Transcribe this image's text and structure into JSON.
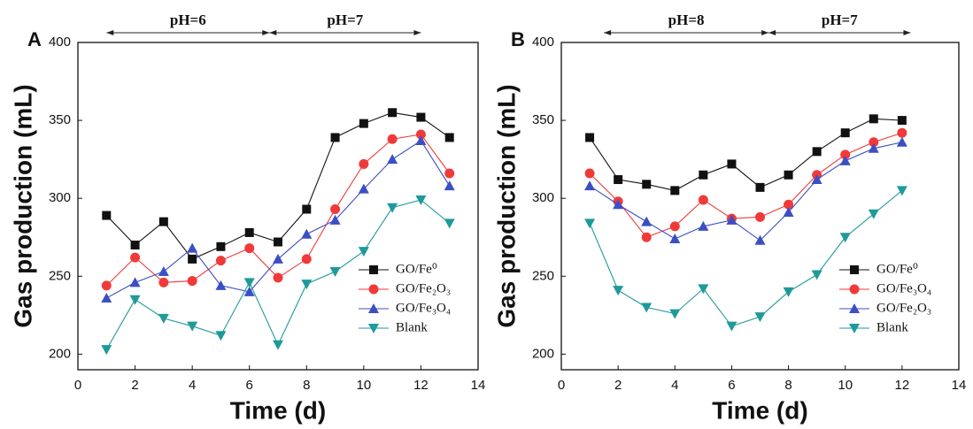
{
  "chart_data": [
    {
      "type": "line",
      "panel_label": "A",
      "xlabel": "Time (d)",
      "ylabel": "Gas production (mL)",
      "x": [
        1,
        2,
        3,
        4,
        5,
        6,
        7,
        8,
        9,
        10,
        11,
        12,
        13
      ],
      "xlim": [
        0,
        14
      ],
      "xticks": [
        0,
        2,
        4,
        6,
        8,
        10,
        12,
        14
      ],
      "ylim": [
        190,
        400
      ],
      "yticks": [
        200,
        250,
        300,
        350,
        400
      ],
      "legend": "lower right",
      "phases": [
        {
          "label": "pH=6",
          "start": 1,
          "end": 6.7
        },
        {
          "label": "pH=7",
          "start": 6.7,
          "end": 12
        }
      ],
      "series": [
        {
          "name": "GO/Fe⁰",
          "color": "#111111",
          "marker": "square",
          "values": [
            289,
            270,
            285,
            261,
            269,
            278,
            272,
            293,
            339,
            348,
            355,
            352,
            339
          ]
        },
        {
          "name": "GO/Fe₂O₃",
          "color": "#f03a3a",
          "marker": "circle",
          "values": [
            244,
            262,
            246,
            247,
            260,
            268,
            249,
            261,
            293,
            322,
            338,
            341,
            316
          ]
        },
        {
          "name": "GO/Fe₃O₄",
          "color": "#3b4fc4",
          "marker": "triangle-up",
          "values": [
            236,
            246,
            253,
            268,
            244,
            240,
            261,
            277,
            286,
            306,
            325,
            337,
            308
          ]
        },
        {
          "name": "Blank",
          "color": "#1f9a9a",
          "marker": "triangle-down",
          "values": [
            203,
            235,
            223,
            218,
            212,
            246,
            206,
            245,
            253,
            266,
            294,
            299,
            284
          ]
        }
      ]
    },
    {
      "type": "line",
      "panel_label": "B",
      "xlabel": "Time (d)",
      "ylabel": "Gas production (mL)",
      "x": [
        1,
        2,
        3,
        4,
        5,
        6,
        7,
        8,
        9,
        10,
        11,
        12
      ],
      "xlim": [
        0,
        14
      ],
      "xticks": [
        0,
        2,
        4,
        6,
        8,
        10,
        12,
        14
      ],
      "ylim": [
        190,
        400
      ],
      "yticks": [
        200,
        250,
        300,
        350,
        400
      ],
      "legend": "lower right",
      "phases": [
        {
          "label": "pH=8",
          "start": 1.5,
          "end": 7.3
        },
        {
          "label": "pH=7",
          "start": 7.3,
          "end": 12.3
        }
      ],
      "series": [
        {
          "name": "GO/Fe⁰",
          "color": "#111111",
          "marker": "square",
          "values": [
            339,
            312,
            309,
            305,
            315,
            322,
            307,
            315,
            330,
            342,
            351,
            350
          ]
        },
        {
          "name": "GO/Fe₃O₄",
          "color": "#f03a3a",
          "marker": "circle",
          "values": [
            316,
            298,
            275,
            282,
            299,
            287,
            288,
            296,
            315,
            328,
            336,
            342
          ]
        },
        {
          "name": "GO/Fe₂O₃",
          "color": "#3b4fc4",
          "marker": "triangle-up",
          "values": [
            308,
            296,
            285,
            274,
            282,
            286,
            273,
            291,
            312,
            324,
            332,
            336
          ]
        },
        {
          "name": "Blank",
          "color": "#1f9a9a",
          "marker": "triangle-down",
          "values": [
            284,
            241,
            230,
            226,
            242,
            218,
            224,
            240,
            251,
            275,
            290,
            305
          ]
        }
      ]
    }
  ]
}
